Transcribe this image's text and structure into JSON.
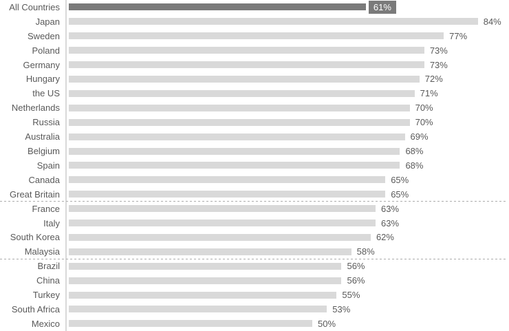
{
  "chart_data": {
    "type": "bar",
    "orientation": "horizontal",
    "title": "",
    "xlabel": "",
    "ylabel": "",
    "grid": false,
    "legend_position": "none",
    "categories": [
      "All Countries",
      "Japan",
      "Sweden",
      "Poland",
      "Germany",
      "Hungary",
      "the US",
      "Netherlands",
      "Russia",
      "Australia",
      "Belgium",
      "Spain",
      "Canada",
      "Great Britain",
      "France",
      "Italy",
      "South Korea",
      "Malaysia",
      "Brazil",
      "China",
      "Turkey",
      "South Africa",
      "Mexico"
    ],
    "values": [
      61,
      84,
      77,
      73,
      73,
      72,
      71,
      70,
      70,
      69,
      68,
      68,
      65,
      65,
      63,
      63,
      62,
      58,
      56,
      56,
      55,
      53,
      50
    ],
    "value_suffix": "%",
    "highlight_index": 0,
    "xlim": [
      0,
      90
    ],
    "separators_after_categories": [
      "Great Britain",
      "Malaysia"
    ],
    "colors": {
      "background": "#ffffff",
      "bar_default": "#d9d9d9",
      "bar_highlight": "#7a7a7a",
      "category_label_text": "#595959",
      "value_label_text": "#595959",
      "highlight_value_bg": "#7a7a7a",
      "highlight_value_text": "#ffffff",
      "axis_line": "#d9d9d9",
      "separator_line": "#ababab"
    }
  }
}
